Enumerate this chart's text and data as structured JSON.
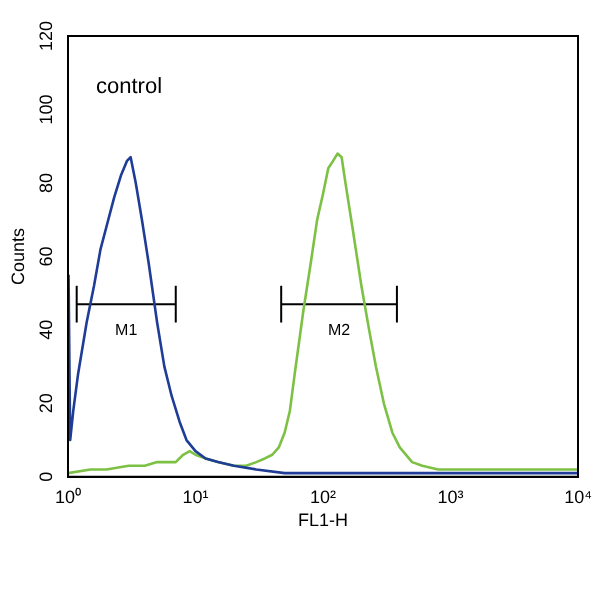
{
  "chart_data": {
    "type": "line",
    "xlabel": "FL1-H",
    "ylabel": "Counts",
    "log": "x",
    "xlim": [
      1,
      10000
    ],
    "ylim": [
      0,
      120
    ],
    "xticks": [
      {
        "value": 1,
        "label": "10⁰"
      },
      {
        "value": 10,
        "label": "10¹"
      },
      {
        "value": 100,
        "label": "10²"
      },
      {
        "value": 1000,
        "label": "10³"
      },
      {
        "value": 10000,
        "label": "10⁴"
      }
    ],
    "yticks": [
      0,
      20,
      40,
      60,
      80,
      100,
      120
    ],
    "grid": false,
    "legend": false,
    "marker": "none",
    "line_style": "solid",
    "annotations": [
      "control",
      "M1",
      "M2"
    ],
    "series": [
      {
        "color": "#1f3c96",
        "x": [
          1.01,
          1.04,
          1.1,
          1.2,
          1.4,
          1.6,
          1.8,
          2,
          2.3,
          2.6,
          2.9,
          3.1,
          3.4,
          3.8,
          4.3,
          5,
          5.7,
          6.5,
          7.5,
          8.5,
          10,
          12,
          15,
          20,
          30,
          50,
          100,
          300,
          1000,
          3000,
          10000
        ],
        "values": [
          55,
          10,
          18,
          28,
          42,
          52,
          62,
          68,
          76,
          82,
          86,
          87,
          80,
          70,
          58,
          42,
          30,
          22,
          15,
          10,
          7,
          5,
          4,
          3,
          2,
          1,
          1,
          1,
          1,
          1,
          1
        ]
      },
      {
        "color": "#7cc144",
        "x": [
          1,
          1.5,
          2,
          3,
          4,
          5,
          7,
          8,
          9,
          10,
          12,
          15,
          20,
          25,
          30,
          35,
          40,
          45,
          50,
          55,
          60,
          70,
          80,
          90,
          100,
          110,
          120,
          130,
          140,
          150,
          170,
          200,
          230,
          260,
          300,
          350,
          400,
          500,
          600,
          800,
          1000,
          2000,
          5000,
          10000
        ],
        "values": [
          1,
          2,
          2,
          3,
          3,
          4,
          4,
          6,
          7,
          6,
          5,
          4,
          3,
          3,
          4,
          5,
          6,
          8,
          12,
          18,
          28,
          45,
          58,
          70,
          77,
          84,
          86,
          88,
          87,
          80,
          68,
          52,
          40,
          30,
          20,
          12,
          8,
          4,
          3,
          2,
          2,
          2,
          2,
          2
        ]
      },
      {
        "color": "#000000",
        "x": [
          1.17,
          7
        ],
        "values": [
          47,
          47
        ],
        "errors": [
          5,
          5
        ]
      },
      {
        "color": "#000000",
        "x": [
          47,
          380
        ],
        "values": [
          47,
          47
        ],
        "errors": [
          5,
          5
        ]
      }
    ]
  }
}
